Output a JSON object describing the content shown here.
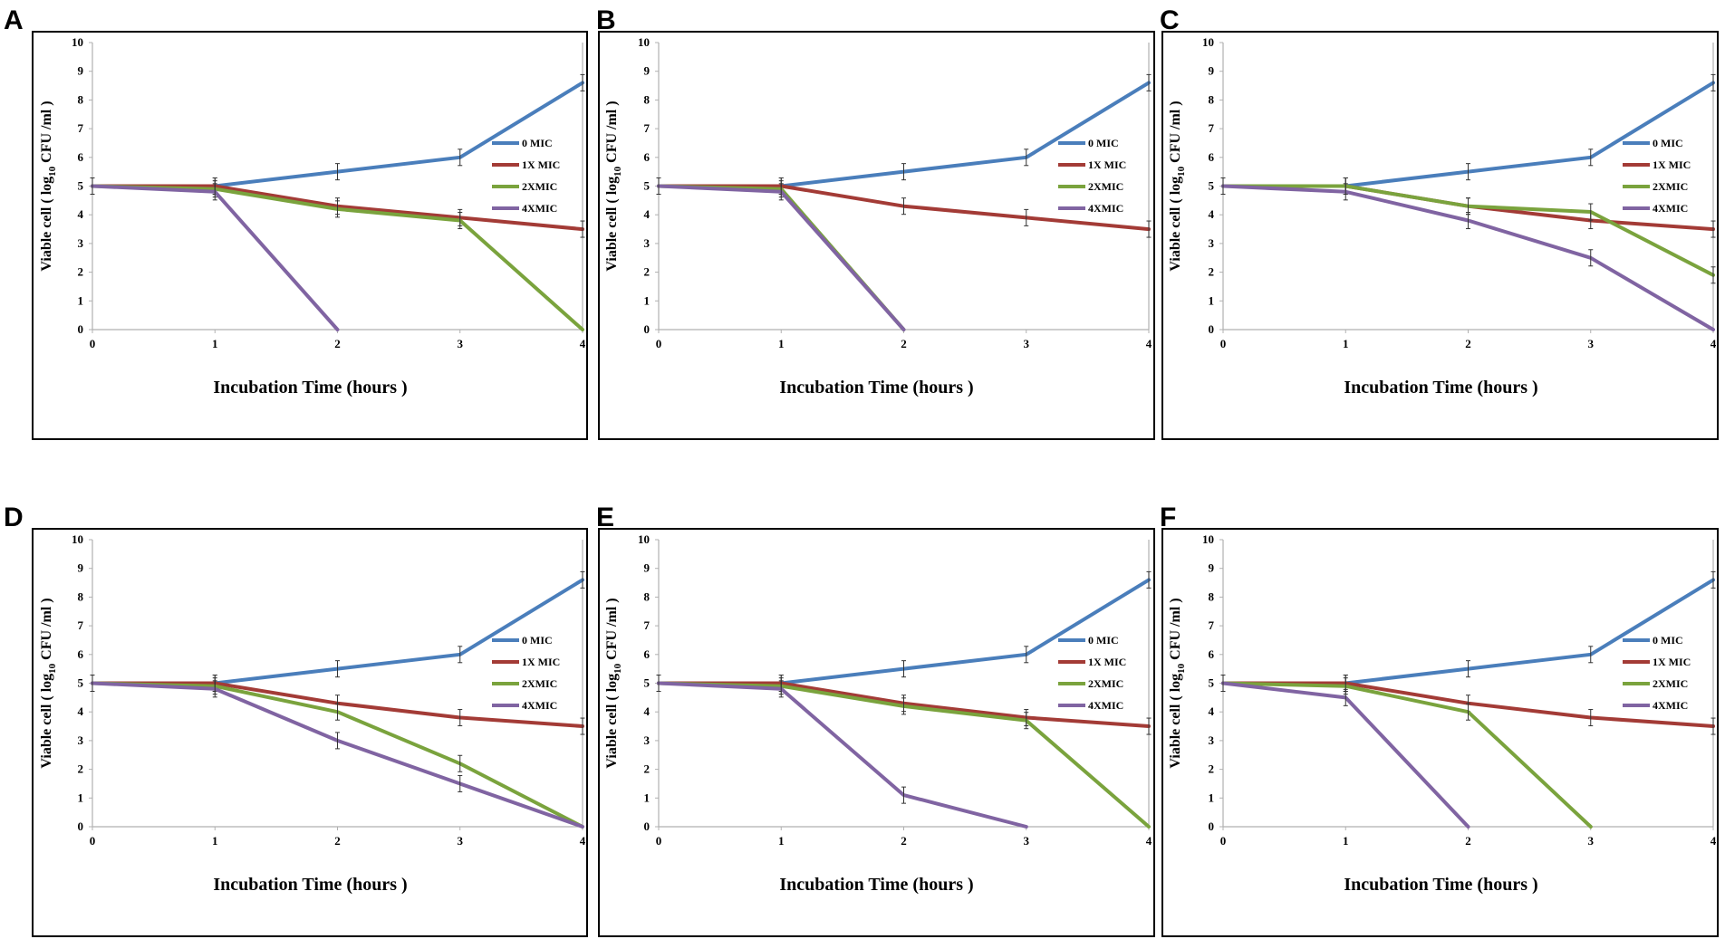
{
  "colors": {
    "frame": "#000000",
    "axis": "#b0b0b0",
    "errbar": "#333333",
    "series": [
      "#4a7ebb",
      "#a33b36",
      "#7aa33d",
      "#8064a2"
    ]
  },
  "chart_data": [
    {
      "panel": "A",
      "type": "line",
      "xlabel": "Incubation Time  (hours )",
      "ylabel": {
        "pre": "Viable cell  ( log",
        "sub": "10",
        "post": " CFU /ml )"
      },
      "x": [
        0,
        1,
        2,
        3,
        4
      ],
      "ylim": [
        0,
        10
      ],
      "xlim": [
        0,
        4
      ],
      "series": [
        {
          "name": "0 MIC",
          "x": [
            0,
            1,
            2,
            3,
            4
          ],
          "values": [
            5,
            5,
            5.5,
            6,
            8.6
          ]
        },
        {
          "name": "1X MIC",
          "x": [
            0,
            1,
            2,
            3,
            4
          ],
          "values": [
            5,
            5,
            4.3,
            3.9,
            3.5
          ]
        },
        {
          "name": "2XMIC",
          "x": [
            0,
            1,
            2,
            3,
            4
          ],
          "values": [
            5,
            4.9,
            4.2,
            3.8,
            0
          ]
        },
        {
          "name": "4XMIC",
          "x": [
            0,
            1,
            2
          ],
          "values": [
            5,
            4.8,
            0
          ]
        }
      ]
    },
    {
      "panel": "B",
      "type": "line",
      "xlabel": "Incubation Time  (hours )",
      "ylabel": {
        "pre": "Viable cell  ( log",
        "sub": "10",
        "post": " CFU /ml )"
      },
      "x": [
        0,
        1,
        2,
        3,
        4
      ],
      "ylim": [
        0,
        10
      ],
      "xlim": [
        0,
        4
      ],
      "series": [
        {
          "name": "0 MIC",
          "x": [
            0,
            1,
            2,
            3,
            4
          ],
          "values": [
            5,
            5,
            5.5,
            6,
            8.6
          ]
        },
        {
          "name": "1X MIC",
          "x": [
            0,
            1,
            2,
            3,
            4
          ],
          "values": [
            5,
            5,
            4.3,
            3.9,
            3.5
          ]
        },
        {
          "name": "2XMIC",
          "x": [
            0,
            1,
            2
          ],
          "values": [
            5,
            4.9,
            0
          ]
        },
        {
          "name": "4XMIC",
          "x": [
            0,
            1,
            2
          ],
          "values": [
            5,
            4.8,
            0
          ]
        }
      ]
    },
    {
      "panel": "C",
      "type": "line",
      "xlabel": "Incubation Time  (hours )",
      "ylabel": {
        "pre": "Viable cell  ( log",
        "sub": "10",
        "post": " CFU /ml )"
      },
      "x": [
        0,
        1,
        2,
        3,
        4
      ],
      "ylim": [
        0,
        10
      ],
      "xlim": [
        0,
        4
      ],
      "series": [
        {
          "name": "0 MIC",
          "x": [
            0,
            1,
            2,
            3,
            4
          ],
          "values": [
            5,
            5,
            5.5,
            6,
            8.6
          ]
        },
        {
          "name": "1X MIC",
          "x": [
            0,
            1,
            2,
            3,
            4
          ],
          "values": [
            5,
            5,
            4.3,
            3.8,
            3.5
          ]
        },
        {
          "name": "2XMIC",
          "x": [
            0,
            1,
            2,
            3,
            4
          ],
          "values": [
            5,
            5,
            4.3,
            4.1,
            1.9
          ]
        },
        {
          "name": "4XMIC",
          "x": [
            0,
            1,
            2,
            3,
            4
          ],
          "values": [
            5,
            4.8,
            3.8,
            2.5,
            0
          ]
        }
      ]
    },
    {
      "panel": "D",
      "type": "line",
      "xlabel": "Incubation Time  (hours )",
      "ylabel": {
        "pre": "Viable cell  ( log",
        "sub": "10",
        "post": " CFU /ml )"
      },
      "x": [
        0,
        1,
        2,
        3,
        4
      ],
      "ylim": [
        0,
        10
      ],
      "xlim": [
        0,
        4
      ],
      "series": [
        {
          "name": "0 MIC",
          "x": [
            0,
            1,
            2,
            3,
            4
          ],
          "values": [
            5,
            5,
            5.5,
            6,
            8.6
          ]
        },
        {
          "name": "1X MIC",
          "x": [
            0,
            1,
            2,
            3,
            4
          ],
          "values": [
            5,
            5,
            4.3,
            3.8,
            3.5
          ]
        },
        {
          "name": "2XMIC",
          "x": [
            0,
            1,
            2,
            3,
            4
          ],
          "values": [
            5,
            4.9,
            4.0,
            2.2,
            0
          ]
        },
        {
          "name": "4XMIC",
          "x": [
            0,
            1,
            2,
            3,
            4
          ],
          "values": [
            5,
            4.8,
            3.0,
            1.5,
            0
          ]
        }
      ]
    },
    {
      "panel": "E",
      "type": "line",
      "xlabel": "Incubation Time  (hours )",
      "ylabel": {
        "pre": "Viable cell  ( log",
        "sub": "10",
        "post": " CFU /ml )"
      },
      "x": [
        0,
        1,
        2,
        3,
        4
      ],
      "ylim": [
        0,
        10
      ],
      "xlim": [
        0,
        4
      ],
      "series": [
        {
          "name": "0 MIC",
          "x": [
            0,
            1,
            2,
            3,
            4
          ],
          "values": [
            5,
            5,
            5.5,
            6,
            8.6
          ]
        },
        {
          "name": "1X MIC",
          "x": [
            0,
            1,
            2,
            3,
            4
          ],
          "values": [
            5,
            5,
            4.3,
            3.8,
            3.5
          ]
        },
        {
          "name": "2XMIC",
          "x": [
            0,
            1,
            2,
            3,
            4
          ],
          "values": [
            5,
            4.9,
            4.2,
            3.7,
            0
          ]
        },
        {
          "name": "4XMIC",
          "x": [
            0,
            1,
            2,
            3
          ],
          "values": [
            5,
            4.8,
            1.1,
            0
          ]
        }
      ]
    },
    {
      "panel": "F",
      "type": "line",
      "xlabel": "Incubation Time  (hours )",
      "ylabel": {
        "pre": "Viable cell  ( log",
        "sub": "10",
        "post": " CFU /ml )"
      },
      "x": [
        0,
        1,
        2,
        3,
        4
      ],
      "ylim": [
        0,
        10
      ],
      "xlim": [
        0,
        4
      ],
      "series": [
        {
          "name": "0 MIC",
          "x": [
            0,
            1,
            2,
            3,
            4
          ],
          "values": [
            5,
            5,
            5.5,
            6,
            8.6
          ]
        },
        {
          "name": "1X MIC",
          "x": [
            0,
            1,
            2,
            3,
            4
          ],
          "values": [
            5,
            5,
            4.3,
            3.8,
            3.5
          ]
        },
        {
          "name": "2XMIC",
          "x": [
            0,
            1,
            2,
            3
          ],
          "values": [
            5,
            4.9,
            4.0,
            0
          ]
        },
        {
          "name": "4XMIC",
          "x": [
            0,
            1,
            2
          ],
          "values": [
            5,
            4.5,
            0
          ]
        }
      ]
    }
  ]
}
